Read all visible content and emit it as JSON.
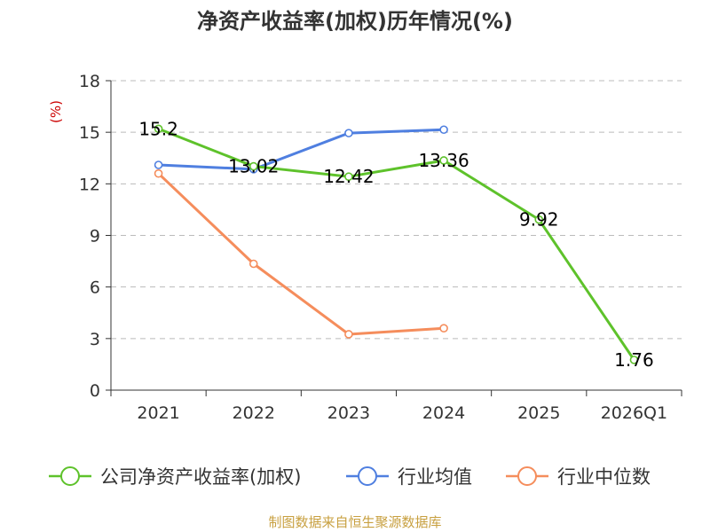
{
  "chart_data": {
    "type": "line",
    "title": "净资产收益率(加权)历年情况(%)",
    "ylabel": "(%)",
    "xlabel": "",
    "categories": [
      "2021",
      "2022",
      "2023",
      "2024",
      "2025",
      "2026Q1"
    ],
    "ylim": [
      0,
      18
    ],
    "yticks": [
      0,
      3,
      6,
      9,
      12,
      15,
      18
    ],
    "grid": true,
    "legend_position": "bottom",
    "series": [
      {
        "name": "公司净资产收益率(加权)",
        "color": "#5ec22b",
        "values": [
          15.2,
          13.02,
          12.42,
          13.36,
          9.92,
          1.76
        ],
        "labels": [
          "15.2",
          "13.02",
          "12.42",
          "13.36",
          "9.92",
          "1.76"
        ],
        "show_labels": true
      },
      {
        "name": "行业均值",
        "color": "#4f7fe0",
        "values": [
          13.1,
          12.85,
          14.95,
          15.15,
          null,
          null
        ],
        "show_labels": false
      },
      {
        "name": "行业中位数",
        "color": "#f58d5c",
        "values": [
          12.6,
          7.35,
          3.25,
          3.6,
          null,
          null
        ],
        "show_labels": false
      }
    ],
    "source": "制图数据来自恒生聚源数据库"
  }
}
